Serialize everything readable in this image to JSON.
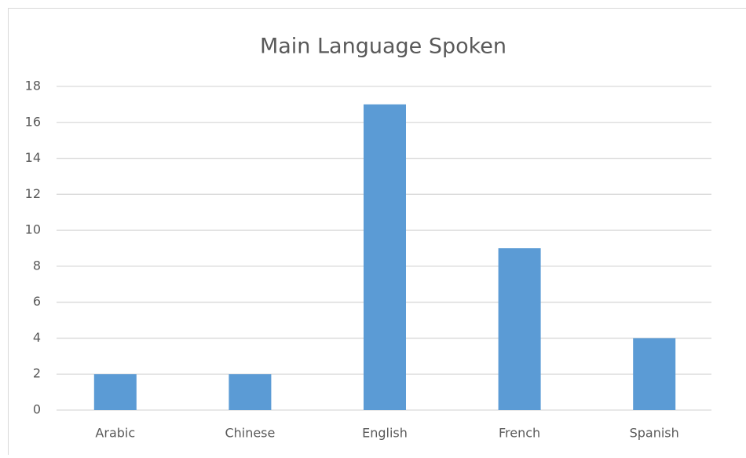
{
  "chart_data": {
    "type": "bar",
    "title": "Main Language Spoken",
    "categories": [
      "Arabic",
      "Chinese",
      "English",
      "French",
      "Spanish"
    ],
    "values": [
      2,
      2,
      17,
      9,
      4
    ],
    "color": "#5b9bd5",
    "ylim": [
      0,
      18
    ],
    "yticks": [
      0,
      2,
      4,
      6,
      8,
      10,
      12,
      14,
      16,
      18
    ],
    "grid": true
  }
}
